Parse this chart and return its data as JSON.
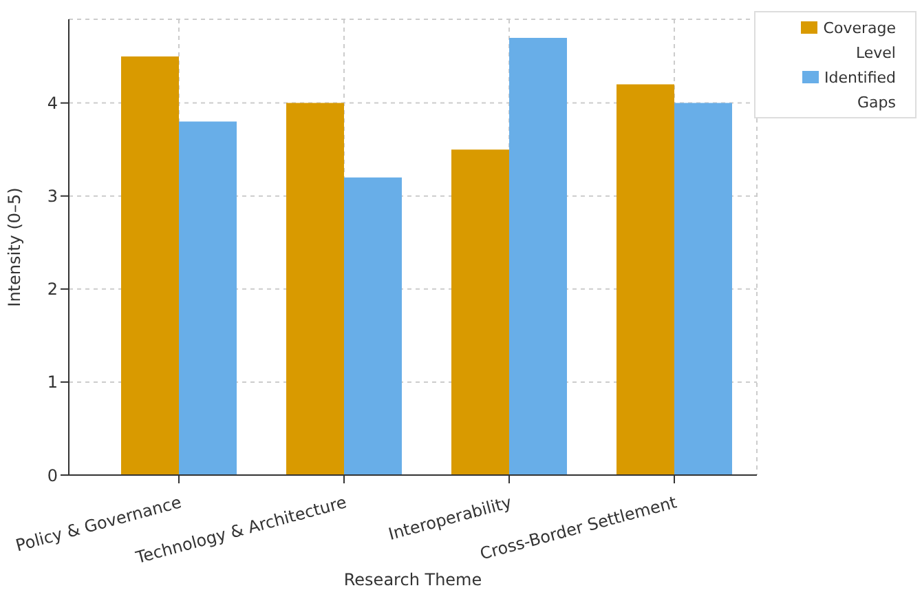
{
  "chart_data": {
    "type": "bar",
    "xlabel": "Research Theme",
    "ylabel": "Intensity (0–5)",
    "categories": [
      "Policy & Governance",
      "Technology & Architecture",
      "Interoperability",
      "Cross-Border Settlement"
    ],
    "series": [
      {
        "name": "Coverage Level",
        "color": "#d99a00",
        "values": [
          4.5,
          4.0,
          3.5,
          4.2
        ]
      },
      {
        "name": "Identified Gaps",
        "color": "#68aee8",
        "values": [
          3.8,
          3.2,
          4.7,
          4.0
        ]
      }
    ],
    "ylim": [
      0,
      4.9
    ],
    "yticks": [
      0,
      1,
      2,
      3,
      4
    ],
    "grid": true,
    "legend": "top right"
  }
}
